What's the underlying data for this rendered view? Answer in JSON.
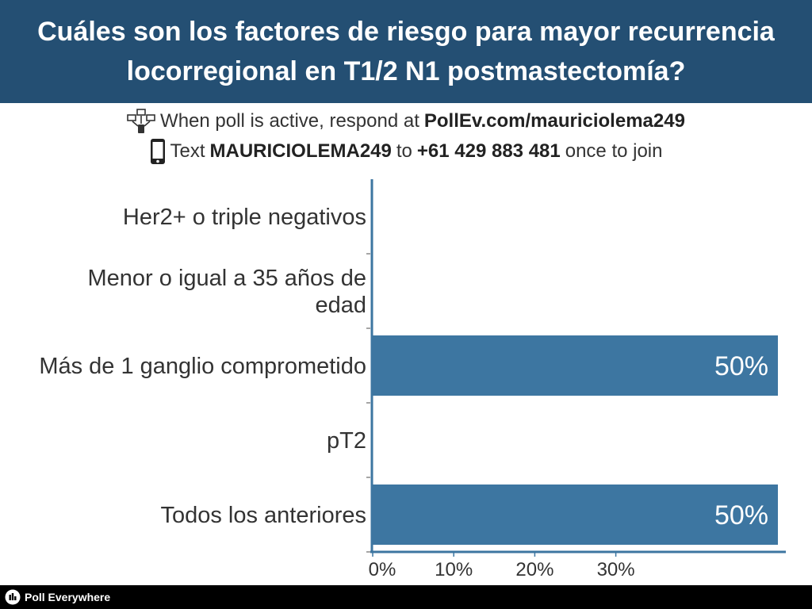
{
  "header": {
    "title_line1": "Cuáles son los factores de riesgo para mayor recurrencia",
    "title_line2": "locorregional en T1/2 N1 postmastectomía?"
  },
  "instructions": {
    "line1_prefix": "When poll is active, respond at",
    "line1_url": "PollEv.com/mauriciolema249",
    "line2_prefix": "Text",
    "line2_code": "MAURICIOLEMA249",
    "line2_mid": "to",
    "line2_number": "+61 429 883 481",
    "line2_suffix": "once to join"
  },
  "chart_data": {
    "type": "bar",
    "orientation": "horizontal",
    "categories": [
      "Her2+ o triple negativos",
      "Menor o igual a 35 años de edad",
      "Más de 1 ganglio comprometido",
      "pT2",
      "Todos los anteriores"
    ],
    "values": [
      0,
      0,
      50,
      0,
      50
    ],
    "data_labels": [
      "",
      "",
      "50%",
      "",
      "50%"
    ],
    "x_ticks": [
      "0%",
      "10%",
      "20%",
      "30%"
    ],
    "xlim": [
      0,
      50
    ],
    "grid": false,
    "title": "",
    "xlabel": "",
    "ylabel": ""
  },
  "colors": {
    "header_bg": "#244f73",
    "bar": "#3d76a1",
    "axis": "#3d76a1"
  },
  "footer": {
    "brand": "Poll Everywhere",
    "logo_icon": "poll-everywhere-logo-icon"
  }
}
